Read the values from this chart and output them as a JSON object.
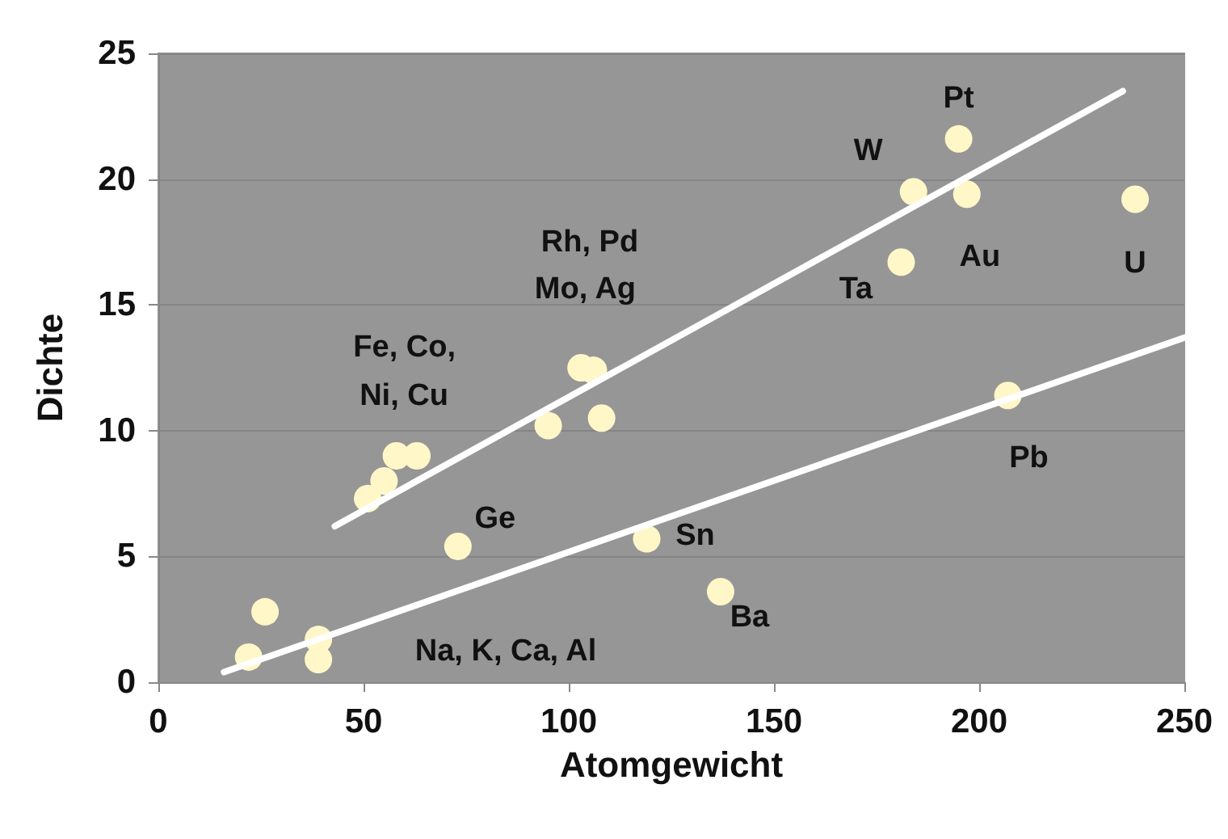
{
  "chart_data": {
    "type": "scatter",
    "xlabel": "Atomgewicht",
    "ylabel": "Dichte",
    "xlim": [
      0,
      250
    ],
    "xticks": [
      0,
      50,
      100,
      150,
      200,
      250
    ],
    "ylim": [
      0,
      25
    ],
    "yticks": [
      0,
      5,
      10,
      15,
      20,
      25
    ],
    "grid": "y",
    "series": [
      {
        "marker": "circle",
        "color": "#fff7c8",
        "x": [
          22,
          26,
          39,
          39,
          51,
          55,
          58,
          63,
          73,
          95,
          103,
          106,
          108,
          119,
          137,
          181,
          184,
          195,
          197,
          207,
          238
        ],
        "values": [
          1.0,
          2.8,
          1.7,
          0.9,
          7.3,
          8.0,
          9.0,
          9.0,
          5.4,
          10.2,
          12.5,
          12.4,
          10.5,
          5.7,
          3.6,
          16.7,
          19.5,
          21.6,
          19.4,
          11.4,
          19.2
        ]
      },
      {
        "type": "line",
        "color": "#ffffff",
        "line_style": "solid",
        "x": [
          43,
          235
        ],
        "values": [
          6.2,
          23.5
        ]
      },
      {
        "type": "line",
        "color": "#ffffff",
        "line_style": "solid",
        "x": [
          16,
          250
        ],
        "values": [
          0.4,
          13.7
        ]
      }
    ],
    "annotations": [
      {
        "text": "Pt",
        "x": 195,
        "y": 21.6
      },
      {
        "text": "W",
        "x": 184,
        "y": 19.5
      },
      {
        "text": "Au",
        "x": 197,
        "y": 19.4
      },
      {
        "text": "Ta",
        "x": 181,
        "y": 16.7
      },
      {
        "text": "U",
        "x": 238,
        "y": 19.2
      },
      {
        "text": "Pb",
        "x": 207,
        "y": 11.4
      },
      {
        "text": "Sn",
        "x": 119,
        "y": 5.7
      },
      {
        "text": "Ba",
        "x": 137,
        "y": 3.6
      },
      {
        "text": "Ge",
        "x": 73,
        "y": 5.4
      },
      "Rh, Pd",
      {
        "text": "Mo, Ag",
        "x": 106,
        "y": 12.4
      },
      {
        "text": "Fe, Co,",
        "x": 58,
        "y": 9.0
      },
      {
        "text": "Ni, Cu",
        "x": 63,
        "y": 9.0
      },
      "Na, K, Ca, Al"
    ]
  }
}
